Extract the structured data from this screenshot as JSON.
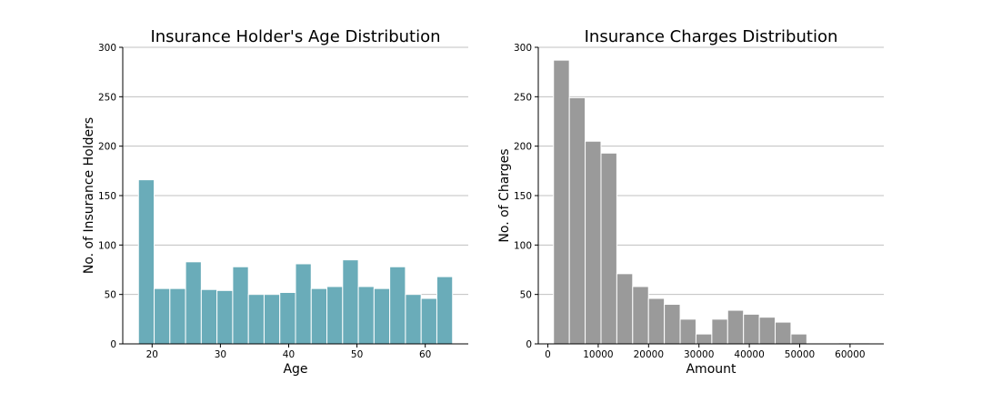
{
  "chart_data": [
    {
      "type": "bar",
      "title": "Insurance Holder's Age Distribution",
      "xlabel": "Age",
      "ylabel": "No. of Insurance Holders",
      "color": "#6aacb9",
      "grid": "y",
      "xlim": [
        15.7,
        66.3
      ],
      "ylim": [
        0,
        300
      ],
      "xticks": [
        20,
        30,
        40,
        50,
        60
      ],
      "yticks": [
        0,
        50,
        100,
        150,
        200,
        250,
        300
      ],
      "bin_start": 18,
      "bin_width": 2.3,
      "values": [
        166,
        56,
        56,
        83,
        55,
        54,
        78,
        50,
        50,
        52,
        81,
        56,
        58,
        85,
        58,
        56,
        78,
        50,
        46,
        68
      ]
    },
    {
      "type": "bar",
      "title": "Insurance Charges Distribution",
      "xlabel": "Amount",
      "ylabel": "No. of Charges",
      "color": "#9a9a9a",
      "grid": "y",
      "xlim": [
        -1900,
        66700
      ],
      "ylim": [
        0,
        300
      ],
      "xticks": [
        0,
        10000,
        20000,
        30000,
        40000,
        50000,
        60000
      ],
      "yticks": [
        0,
        50,
        100,
        150,
        200,
        250,
        300
      ],
      "bin_start": 1122,
      "bin_width": 3143.5,
      "values": [
        287,
        249,
        205,
        193,
        71,
        58,
        46,
        40,
        25,
        10,
        25,
        34,
        30,
        27,
        22,
        10,
        0,
        0,
        1,
        1
      ]
    }
  ]
}
